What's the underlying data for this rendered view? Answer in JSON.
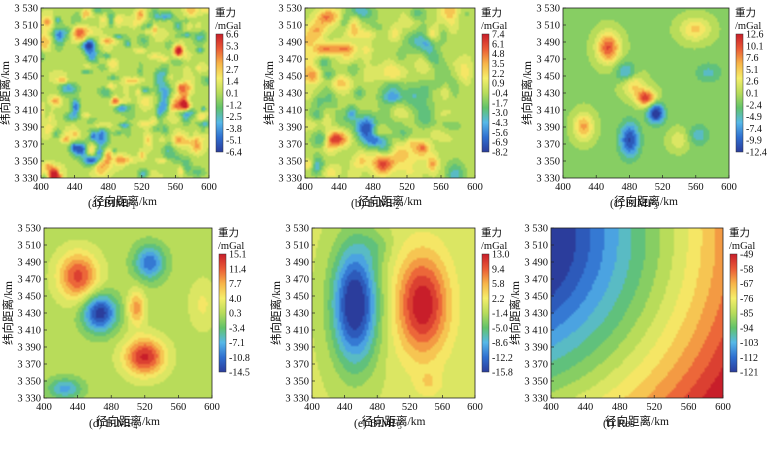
{
  "chart_data": [
    {
      "id": "a",
      "type": "heatmap",
      "title": "BIMF1",
      "caption_prefix": "(a) BIMF",
      "caption_sub": "1",
      "xlabel": "径向距离/km",
      "ylabel": "纬向距离/km",
      "x_ticks": [
        "400",
        "440",
        "480",
        "520",
        "560",
        "600"
      ],
      "y_ticks": [
        "3 530",
        "3 510",
        "3 490",
        "3 470",
        "3 450",
        "3 430",
        "3 410",
        "3 390",
        "3 370",
        "3 350",
        "3 330"
      ],
      "xlim": [
        400,
        600
      ],
      "ylim": [
        3330,
        3530
      ],
      "colorbar_title": [
        "重力",
        "/mGal"
      ],
      "colorbar_ticks": [
        "6.6",
        "5.3",
        "4.0",
        "2.7",
        "1.4",
        "0.1",
        "-1.2",
        "-2.5",
        "-3.8",
        "-5.1",
        "-6.4"
      ],
      "value_range": [
        -6.4,
        6.6
      ]
    },
    {
      "id": "b",
      "type": "heatmap",
      "title": "BIMF2",
      "caption_prefix": "(b) BIMF",
      "caption_sub": "2",
      "xlabel": "径向距离/km",
      "ylabel": "纬向距离/km",
      "x_ticks": [
        "400",
        "440",
        "480",
        "520",
        "560",
        "600"
      ],
      "y_ticks": [
        "3 530",
        "3 510",
        "3 490",
        "3 470",
        "3 450",
        "3 430",
        "3 410",
        "3 390",
        "3 370",
        "3 350",
        "3 330"
      ],
      "xlim": [
        400,
        600
      ],
      "ylim": [
        3330,
        3530
      ],
      "colorbar_title": [
        "重力",
        "/mGal"
      ],
      "colorbar_ticks": [
        "7.4",
        "6.1",
        "4.8",
        "3.5",
        "2.2",
        "0.9",
        "-0.4",
        "-1.7",
        "-3.0",
        "-4.3",
        "-5.6",
        "-6.9",
        "-8.2"
      ],
      "value_range": [
        -8.2,
        7.4
      ]
    },
    {
      "id": "c",
      "type": "heatmap",
      "title": "BIMF3",
      "caption_prefix": "(c) BIMF",
      "caption_sub": "3",
      "xlabel": "径向距离/km",
      "ylabel": "纬向距离/km",
      "x_ticks": [
        "400",
        "440",
        "480",
        "520",
        "560",
        "600"
      ],
      "y_ticks": [
        "3 530",
        "3 510",
        "3 490",
        "3 470",
        "3 450",
        "3 430",
        "3 410",
        "3 390",
        "3 370",
        "3 350",
        "3 330"
      ],
      "xlim": [
        400,
        600
      ],
      "ylim": [
        3330,
        3530
      ],
      "colorbar_title": [
        "重力",
        "/mGal"
      ],
      "colorbar_ticks": [
        "12.6",
        "10.1",
        "7.6",
        "5.1",
        "2.6",
        "0.1",
        "-2.4",
        "-4.9",
        "-7.4",
        "-9.9",
        "-12.4"
      ],
      "value_range": [
        -12.4,
        12.6
      ]
    },
    {
      "id": "d",
      "type": "heatmap",
      "title": "BIMF4",
      "caption_prefix": "(d) BIMF",
      "caption_sub": "4",
      "xlabel": "径向距离/km",
      "ylabel": "纬向距离/km",
      "x_ticks": [
        "400",
        "440",
        "480",
        "520",
        "560",
        "600"
      ],
      "y_ticks": [
        "3 530",
        "3 510",
        "3 490",
        "3 470",
        "3 450",
        "3 430",
        "3 410",
        "3 390",
        "3 370",
        "3 350",
        "3 330"
      ],
      "xlim": [
        400,
        600
      ],
      "ylim": [
        3330,
        3530
      ],
      "colorbar_title": [
        "重力",
        "/mGal"
      ],
      "colorbar_ticks": [
        "15.1",
        "11.4",
        "7.7",
        "4.0",
        "0.3",
        "-3.4",
        "-7.1",
        "-10.8",
        "-14.5"
      ],
      "value_range": [
        -14.5,
        15.1
      ]
    },
    {
      "id": "e",
      "type": "heatmap",
      "title": "BIMF5",
      "caption_prefix": "(e) BIMF",
      "caption_sub": "5",
      "xlabel": "径向距离/km",
      "ylabel": "纬向距离/km",
      "x_ticks": [
        "400",
        "440",
        "480",
        "520",
        "560",
        "600"
      ],
      "y_ticks": [
        "3 530",
        "3 510",
        "3 490",
        "3 470",
        "3 450",
        "3 430",
        "3 410",
        "3 390",
        "3 370",
        "3 350",
        "3 330"
      ],
      "xlim": [
        400,
        600
      ],
      "ylim": [
        3330,
        3530
      ],
      "colorbar_title": [
        "重力",
        "/mGal"
      ],
      "colorbar_ticks": [
        "13.0",
        "9.4",
        "5.8",
        "2.2",
        "-1.4",
        "-5.0",
        "-8.6",
        "-12.2",
        "-15.8"
      ],
      "value_range": [
        -15.8,
        13.0
      ]
    },
    {
      "id": "f",
      "type": "heatmap",
      "title": "Res",
      "caption_prefix": "(f) Res",
      "caption_sub": "",
      "xlabel": "径向距离/km",
      "ylabel": "纬向距离/km",
      "x_ticks": [
        "400",
        "440",
        "480",
        "520",
        "560",
        "600"
      ],
      "y_ticks": [
        "3 530",
        "3 510",
        "3 490",
        "3 470",
        "3 450",
        "3 430",
        "3 410",
        "3 390",
        "3 370",
        "3 350",
        "3 330"
      ],
      "xlim": [
        400,
        600
      ],
      "ylim": [
        3330,
        3530
      ],
      "colorbar_title": [
        "重力",
        "/mGal"
      ],
      "colorbar_ticks": [
        "-49",
        "-58",
        "-67",
        "-76",
        "-85",
        "-94",
        "-103",
        "-112",
        "-121"
      ],
      "value_range": [
        -121,
        -49
      ]
    }
  ],
  "colormap": [
    "#2b3d9c",
    "#2f6fd0",
    "#56b8e8",
    "#62c36a",
    "#b8dc5a",
    "#f5ee6a",
    "#f7b448",
    "#ea5a36",
    "#c81e2a"
  ]
}
